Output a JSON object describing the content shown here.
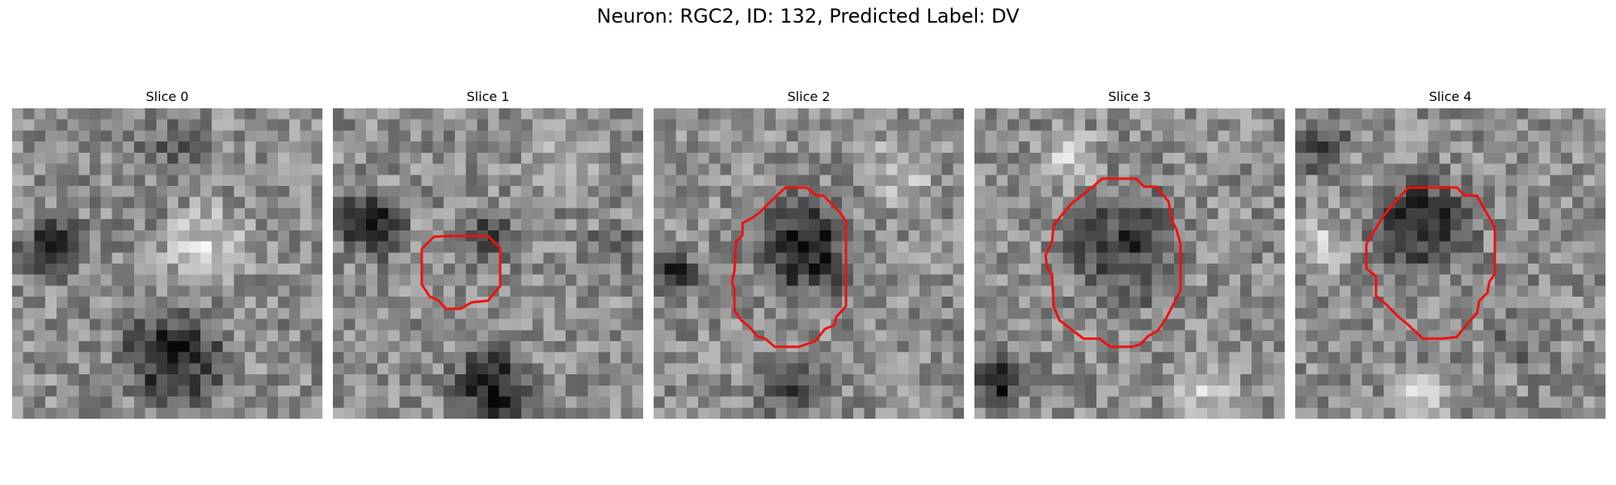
{
  "figure": {
    "title": "Neuron: RGC2, ID: 132, Predicted Label: DV",
    "contour_color": "#ee1111"
  },
  "panels": [
    {
      "title": "Slice 0",
      "has_contour": false
    },
    {
      "title": "Slice 1",
      "has_contour": true
    },
    {
      "title": "Slice 2",
      "has_contour": true
    },
    {
      "title": "Slice 3",
      "has_contour": true
    },
    {
      "title": "Slice 4",
      "has_contour": true
    }
  ]
}
